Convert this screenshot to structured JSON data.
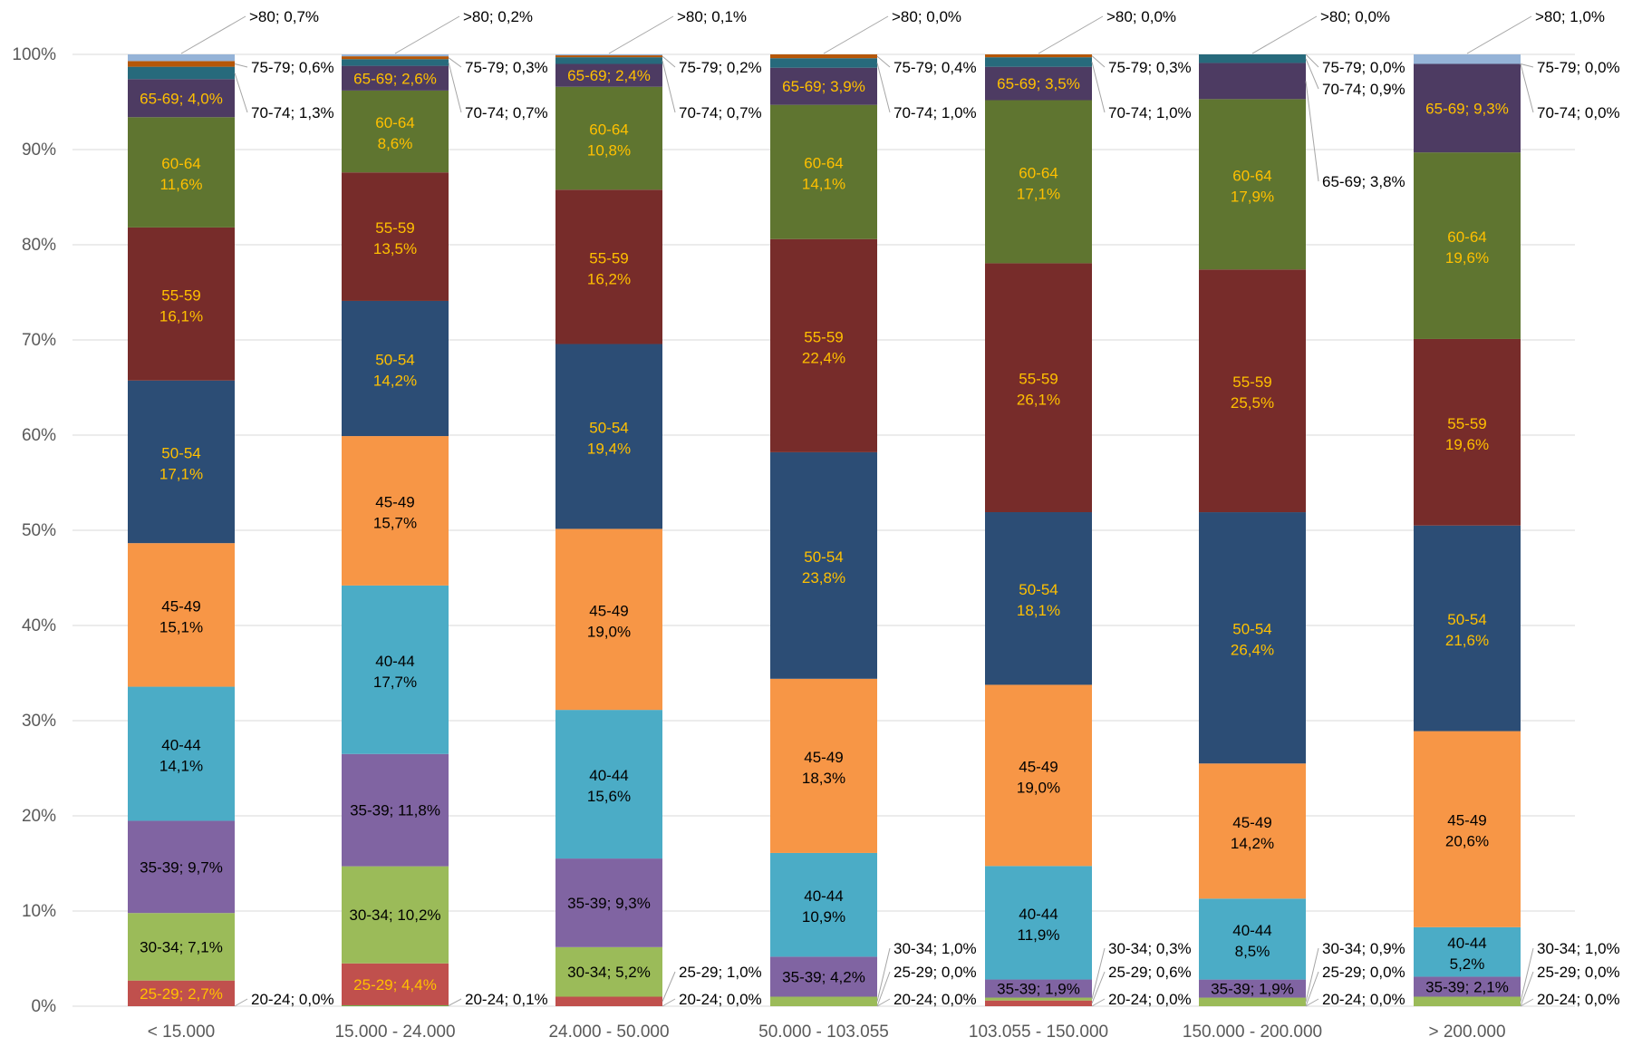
{
  "chart_data": {
    "type": "bar",
    "stacked": true,
    "percent_stacked": true,
    "title": "",
    "xlabel": "",
    "ylabel": "",
    "ylim": [
      0,
      100
    ],
    "y_ticks": [
      "0%",
      "10%",
      "20%",
      "30%",
      "40%",
      "50%",
      "60%",
      "70%",
      "80%",
      "90%",
      "100%"
    ],
    "grid": "horizontal",
    "legend": "none",
    "categories": [
      "< 15.000",
      "15.000 - 24.000",
      "24.000 - 50.000",
      "50.000 - 103.055",
      "103.055 - 150.000",
      "150.000 - 200.000",
      "> 200.000"
    ],
    "series": [
      {
        "name": "20-24",
        "color": "#70ad47",
        "values": [
          0.0,
          0.1,
          0.0,
          0.0,
          0.0,
          0.0,
          0.0
        ],
        "display": [
          "0,0%",
          "0,1%",
          "0,0%",
          "0,0%",
          "0,0%",
          "0,0%",
          "0,0%"
        ],
        "label_style": [
          "out",
          "out",
          "out",
          "out",
          "out",
          "out",
          "out"
        ]
      },
      {
        "name": "25-29",
        "color": "#c0504d",
        "values": [
          2.7,
          4.4,
          1.0,
          0.0,
          0.6,
          0.0,
          0.0
        ],
        "display": [
          "2,7%",
          "4,4%",
          "1,0%",
          "0,0%",
          "0,6%",
          "0,0%",
          "0,0%"
        ],
        "label_style": [
          "inline",
          "inline",
          "out",
          "out",
          "out",
          "out",
          "out"
        ]
      },
      {
        "name": "30-34",
        "color": "#9bbb59",
        "values": [
          7.1,
          10.2,
          5.2,
          1.0,
          0.3,
          0.9,
          1.0
        ],
        "display": [
          "7,1%",
          "10,2%",
          "5,2%",
          "1,0%",
          "0,3%",
          "0,9%",
          "1,0%"
        ],
        "label_style": [
          "inline",
          "inline",
          "inline",
          "out",
          "out",
          "out",
          "out"
        ]
      },
      {
        "name": "35-39",
        "color": "#8064a2",
        "values": [
          9.7,
          11.8,
          9.3,
          4.2,
          1.9,
          1.9,
          2.1
        ],
        "display": [
          "9,7%",
          "11,8%",
          "9,3%",
          "4,2%",
          "1,9%",
          "1,9%",
          "2,1%"
        ],
        "label_style": [
          "inline",
          "inline",
          "inline",
          "inline",
          "inline",
          "inline",
          "inline"
        ]
      },
      {
        "name": "40-44",
        "color": "#4bacc6",
        "values": [
          14.1,
          17.7,
          15.6,
          10.9,
          11.9,
          8.5,
          5.2
        ],
        "display": [
          "14,1%",
          "17,7%",
          "15,6%",
          "10,9%",
          "11,9%",
          "8,5%",
          "5,2%"
        ],
        "label_style": [
          "stack",
          "stack",
          "stack",
          "stack",
          "stack",
          "stack",
          "stack"
        ]
      },
      {
        "name": "45-49",
        "color": "#f79646",
        "values": [
          15.1,
          15.7,
          19.0,
          18.3,
          19.0,
          14.2,
          20.6
        ],
        "display": [
          "15,1%",
          "15,7%",
          "19,0%",
          "18,3%",
          "19,0%",
          "14,2%",
          "20,6%"
        ],
        "label_style": [
          "stack",
          "stack",
          "stack",
          "stack",
          "stack",
          "stack",
          "stack"
        ]
      },
      {
        "name": "50-54",
        "color": "#2c4d75",
        "values": [
          17.1,
          14.2,
          19.4,
          23.8,
          18.1,
          26.4,
          21.6
        ],
        "display": [
          "17,1%",
          "14,2%",
          "19,4%",
          "23,8%",
          "18,1%",
          "26,4%",
          "21,6%"
        ],
        "label_style": [
          "stack",
          "stack",
          "stack",
          "stack",
          "stack",
          "stack",
          "stack"
        ]
      },
      {
        "name": "55-59",
        "color": "#772c2a",
        "values": [
          16.1,
          13.5,
          16.2,
          22.4,
          26.1,
          25.5,
          19.6
        ],
        "display": [
          "16,1%",
          "13,5%",
          "16,2%",
          "22,4%",
          "26,1%",
          "25,5%",
          "19,6%"
        ],
        "label_style": [
          "stack",
          "stack",
          "stack",
          "stack",
          "stack",
          "stack",
          "stack"
        ]
      },
      {
        "name": "60-64",
        "color": "#5f7530",
        "values": [
          11.6,
          8.6,
          10.8,
          14.1,
          17.1,
          17.9,
          19.6
        ],
        "display": [
          "11,6%",
          "8,6%",
          "10,8%",
          "14,1%",
          "17,1%",
          "17,9%",
          "19,6%"
        ],
        "label_style": [
          "stack",
          "stack",
          "stack",
          "stack",
          "stack",
          "stack",
          "stack"
        ]
      },
      {
        "name": "65-69",
        "color": "#4d3b62",
        "values": [
          4.0,
          2.6,
          2.4,
          3.9,
          3.5,
          3.8,
          9.3
        ],
        "display": [
          "4,0%",
          "2,6%",
          "2,4%",
          "3,9%",
          "3,5%",
          "3,8%",
          "9,3%"
        ],
        "label_style": [
          "inline",
          "inline",
          "inline",
          "inline",
          "inline",
          "out",
          "inline"
        ]
      },
      {
        "name": "70-74",
        "color": "#276a7c",
        "values": [
          1.3,
          0.7,
          0.7,
          1.0,
          1.0,
          0.9,
          0.0
        ],
        "display": [
          "1,3%",
          "0,7%",
          "0,7%",
          "1,0%",
          "1,0%",
          "0,9%",
          "0,0%"
        ],
        "label_style": [
          "out",
          "out",
          "out",
          "out",
          "out",
          "out",
          "out"
        ]
      },
      {
        "name": "75-79",
        "color": "#b65708",
        "values": [
          0.6,
          0.3,
          0.2,
          0.4,
          0.3,
          0.0,
          0.0
        ],
        "display": [
          "0,6%",
          "0,3%",
          "0,2%",
          "0,4%",
          "0,3%",
          "0,0%",
          "0,0%"
        ],
        "label_style": [
          "out",
          "out",
          "out",
          "out",
          "out",
          "out",
          "out"
        ]
      },
      {
        "name": ">80",
        "color": "#95b3d7",
        "values": [
          0.7,
          0.2,
          0.1,
          0.0,
          0.0,
          0.0,
          1.0
        ],
        "display": [
          "0,7%",
          "0,2%",
          "0,1%",
          "0,0%",
          "0,0%",
          "0,0%",
          "1,0%"
        ],
        "label_style": [
          "out",
          "out",
          "out",
          "out",
          "out",
          "out",
          "out"
        ]
      }
    ],
    "colors": {
      "gridline": "#d9d9d9",
      "axis_text": "#595959",
      "label_dark": "#000000",
      "label_light": "#ffc000",
      "leader_line": "#a6a6a6"
    }
  }
}
